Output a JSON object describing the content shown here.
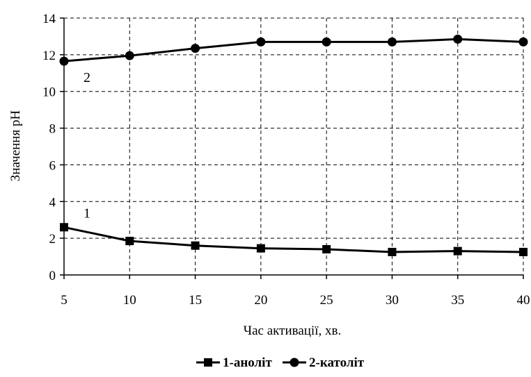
{
  "chart_data": {
    "type": "line",
    "xlabel": "Час активації, хв.",
    "ylabel": "Значення pH",
    "x": [
      5,
      10,
      15,
      20,
      25,
      30,
      35,
      40
    ],
    "xlim": [
      5,
      40
    ],
    "ylim": [
      0,
      14
    ],
    "x_ticks": [
      5,
      10,
      15,
      20,
      25,
      30,
      35,
      40
    ],
    "y_ticks": [
      0,
      2,
      4,
      6,
      8,
      10,
      12,
      14
    ],
    "grid": true,
    "legend_position": "bottom",
    "series": [
      {
        "name": "1-аноліт",
        "annotation": "1",
        "marker": "square",
        "color": "#000000",
        "values": [
          2.6,
          1.85,
          1.6,
          1.45,
          1.4,
          1.25,
          1.3,
          1.25
        ]
      },
      {
        "name": "2-католіт",
        "annotation": "2",
        "marker": "circle",
        "color": "#000000",
        "values": [
          11.65,
          11.95,
          12.35,
          12.7,
          12.7,
          12.7,
          12.85,
          12.7
        ]
      }
    ]
  }
}
